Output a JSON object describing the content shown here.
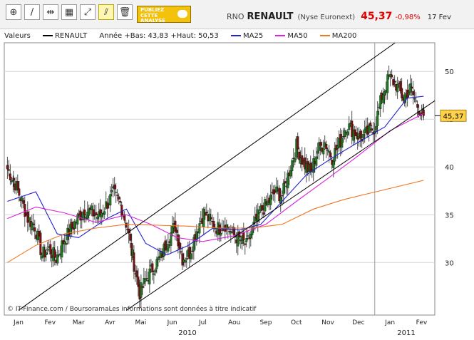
{
  "toolbar": {
    "tools": [
      {
        "icon": "zoom-icon",
        "glyph": "⊕"
      },
      {
        "icon": "draw-line-icon",
        "glyph": "/"
      },
      {
        "icon": "horizontal-line-icon",
        "glyph": "⇹"
      },
      {
        "icon": "indicators-icon",
        "glyph": "▦"
      },
      {
        "icon": "fibonacci-icon",
        "glyph": "⤢"
      },
      {
        "icon": "channel-icon",
        "glyph": "⫽"
      },
      {
        "icon": "delete-icon",
        "glyph": "🗑"
      }
    ],
    "promo_line1": "PUBLIEZ",
    "promo_line2": "CETTE",
    "promo_line3": "ANALYSE"
  },
  "quote": {
    "ticker": "RNO",
    "name": "RENAULT",
    "exchange": "(Nyse Euronext)",
    "price": "45,37",
    "change": "-0,98%",
    "date": "17 Fev"
  },
  "legend": {
    "valeurs_label": "Valeurs",
    "series_name": "RENAULT",
    "stats": "Année +Bas: 43,83 +Haut: 50,53",
    "ma25_label": "MA25",
    "ma50_label": "MA50",
    "ma200_label": "MA200"
  },
  "colors": {
    "up": "#1e7a1e",
    "down": "#7a1010",
    "ma25": "#2222cc",
    "ma50": "#dd22dd",
    "ma200": "#ee7722",
    "channel": "#000000",
    "last_price_bg": "#ffd24a"
  },
  "watermark": "© IT-Finance.com / BoursoramaLes informations sont données à titre indicatif",
  "chart_data": {
    "type": "candlestick",
    "ylim": [
      24.5,
      53
    ],
    "y_ticks": [
      30,
      35,
      40,
      45,
      50
    ],
    "y_tick_labels": [
      "30",
      "35",
      "40",
      "45",
      "50"
    ],
    "x_start": "2010-01-01",
    "x_end": "2011-02-28",
    "x_tick_labels": [
      "Jan",
      "Fev",
      "Mar",
      "Avr",
      "Mai",
      "Jun",
      "Jul",
      "Aou",
      "Sep",
      "Oct",
      "Nov",
      "Dec",
      "Jan",
      "Fev"
    ],
    "x_tick_dates": [
      "2010-01-15",
      "2010-02-15",
      "2010-03-15",
      "2010-04-15",
      "2010-05-15",
      "2010-06-15",
      "2010-07-15",
      "2010-08-15",
      "2010-09-15",
      "2010-10-15",
      "2010-11-15",
      "2010-12-15",
      "2011-01-15",
      "2011-02-15"
    ],
    "year_labels": [
      {
        "label": "2010",
        "date": "2010-06-30"
      },
      {
        "label": "2011",
        "date": "2011-01-31"
      }
    ],
    "year_divider": "2010-12-31",
    "last_price": 45.37,
    "last_price_label": "45,37",
    "close_anchors": [
      [
        "2010-01-04",
        39.8
      ],
      [
        "2010-01-10",
        38.6
      ],
      [
        "2010-01-17",
        36.8
      ],
      [
        "2010-01-24",
        34.6
      ],
      [
        "2010-01-31",
        33.8
      ],
      [
        "2010-02-07",
        30.8
      ],
      [
        "2010-02-14",
        31.4
      ],
      [
        "2010-02-21",
        30.4
      ],
      [
        "2010-02-28",
        32.2
      ],
      [
        "2010-03-07",
        33.4
      ],
      [
        "2010-03-14",
        34.6
      ],
      [
        "2010-03-21",
        35.6
      ],
      [
        "2010-03-28",
        35.2
      ],
      [
        "2010-04-04",
        34.8
      ],
      [
        "2010-04-11",
        36.0
      ],
      [
        "2010-04-18",
        37.2
      ],
      [
        "2010-04-25",
        36.2
      ],
      [
        "2010-05-02",
        33.6
      ],
      [
        "2010-05-07",
        30.6
      ],
      [
        "2010-05-14",
        26.8
      ],
      [
        "2010-05-21",
        28.4
      ],
      [
        "2010-05-28",
        29.6
      ],
      [
        "2010-06-04",
        30.6
      ],
      [
        "2010-06-11",
        32.6
      ],
      [
        "2010-06-18",
        33.8
      ],
      [
        "2010-06-25",
        30.4
      ],
      [
        "2010-07-02",
        31.0
      ],
      [
        "2010-07-09",
        33.4
      ],
      [
        "2010-07-16",
        35.2
      ],
      [
        "2010-07-23",
        34.2
      ],
      [
        "2010-07-30",
        33.6
      ],
      [
        "2010-08-06",
        34.0
      ],
      [
        "2010-08-13",
        33.0
      ],
      [
        "2010-08-20",
        32.4
      ],
      [
        "2010-08-27",
        31.8
      ],
      [
        "2010-09-03",
        33.8
      ],
      [
        "2010-09-10",
        35.4
      ],
      [
        "2010-09-17",
        36.2
      ],
      [
        "2010-09-24",
        37.4
      ],
      [
        "2010-10-01",
        37.0
      ],
      [
        "2010-10-08",
        39.6
      ],
      [
        "2010-10-15",
        42.2
      ],
      [
        "2010-10-22",
        40.4
      ],
      [
        "2010-10-29",
        39.4
      ],
      [
        "2010-11-05",
        41.8
      ],
      [
        "2010-11-12",
        42.6
      ],
      [
        "2010-11-19",
        41.0
      ],
      [
        "2010-11-26",
        42.4
      ],
      [
        "2010-12-03",
        44.4
      ],
      [
        "2010-12-10",
        43.8
      ],
      [
        "2010-12-17",
        43.0
      ],
      [
        "2010-12-24",
        43.6
      ],
      [
        "2010-12-31",
        44.2
      ],
      [
        "2011-01-07",
        47.4
      ],
      [
        "2011-01-14",
        49.4
      ],
      [
        "2011-01-21",
        48.6
      ],
      [
        "2011-01-28",
        47.2
      ],
      [
        "2011-02-04",
        48.2
      ],
      [
        "2011-02-11",
        46.4
      ],
      [
        "2011-02-17",
        45.37
      ]
    ],
    "series": [
      {
        "name": "MA25",
        "points": [
          [
            "2010-01-04",
            36.4
          ],
          [
            "2010-02-01",
            37.4
          ],
          [
            "2010-02-22",
            33.0
          ],
          [
            "2010-03-15",
            32.6
          ],
          [
            "2010-04-12",
            34.6
          ],
          [
            "2010-05-01",
            35.6
          ],
          [
            "2010-05-20",
            32.0
          ],
          [
            "2010-06-10",
            30.8
          ],
          [
            "2010-07-01",
            31.8
          ],
          [
            "2010-07-25",
            33.6
          ],
          [
            "2010-08-20",
            33.4
          ],
          [
            "2010-09-10",
            34.0
          ],
          [
            "2010-10-01",
            36.4
          ],
          [
            "2010-10-25",
            39.2
          ],
          [
            "2010-11-20",
            41.0
          ],
          [
            "2010-12-15",
            42.6
          ],
          [
            "2011-01-10",
            44.2
          ],
          [
            "2011-02-01",
            47.2
          ],
          [
            "2011-02-17",
            47.4
          ]
        ]
      },
      {
        "name": "MA50",
        "points": [
          [
            "2010-01-04",
            34.6
          ],
          [
            "2010-02-01",
            35.8
          ],
          [
            "2010-03-01",
            35.2
          ],
          [
            "2010-04-01",
            34.2
          ],
          [
            "2010-05-01",
            35.0
          ],
          [
            "2010-05-25",
            34.0
          ],
          [
            "2010-06-20",
            32.6
          ],
          [
            "2010-07-15",
            32.2
          ],
          [
            "2010-08-15",
            32.8
          ],
          [
            "2010-09-15",
            34.0
          ],
          [
            "2010-10-15",
            36.4
          ],
          [
            "2010-11-15",
            38.8
          ],
          [
            "2010-12-15",
            41.2
          ],
          [
            "2011-01-15",
            43.8
          ],
          [
            "2011-02-17",
            45.6
          ]
        ]
      },
      {
        "name": "MA200",
        "points": [
          [
            "2010-01-04",
            30.0
          ],
          [
            "2010-02-01",
            31.8
          ],
          [
            "2010-03-01",
            33.0
          ],
          [
            "2010-04-01",
            33.6
          ],
          [
            "2010-05-01",
            34.0
          ],
          [
            "2010-06-01",
            33.9
          ],
          [
            "2010-07-01",
            33.8
          ],
          [
            "2010-08-01",
            33.6
          ],
          [
            "2010-09-01",
            33.6
          ],
          [
            "2010-10-01",
            34.0
          ],
          [
            "2010-11-01",
            35.6
          ],
          [
            "2010-12-01",
            36.6
          ],
          [
            "2011-01-01",
            37.4
          ],
          [
            "2011-02-17",
            38.6
          ]
        ]
      }
    ],
    "channel_lines": [
      {
        "start": [
          "2010-01-15",
          25.0
        ],
        "end": [
          "2011-01-20",
          53.0
        ]
      },
      {
        "start": [
          "2010-05-01",
          25.0
        ],
        "end": [
          "2011-03-01",
          47.0
        ]
      }
    ]
  }
}
